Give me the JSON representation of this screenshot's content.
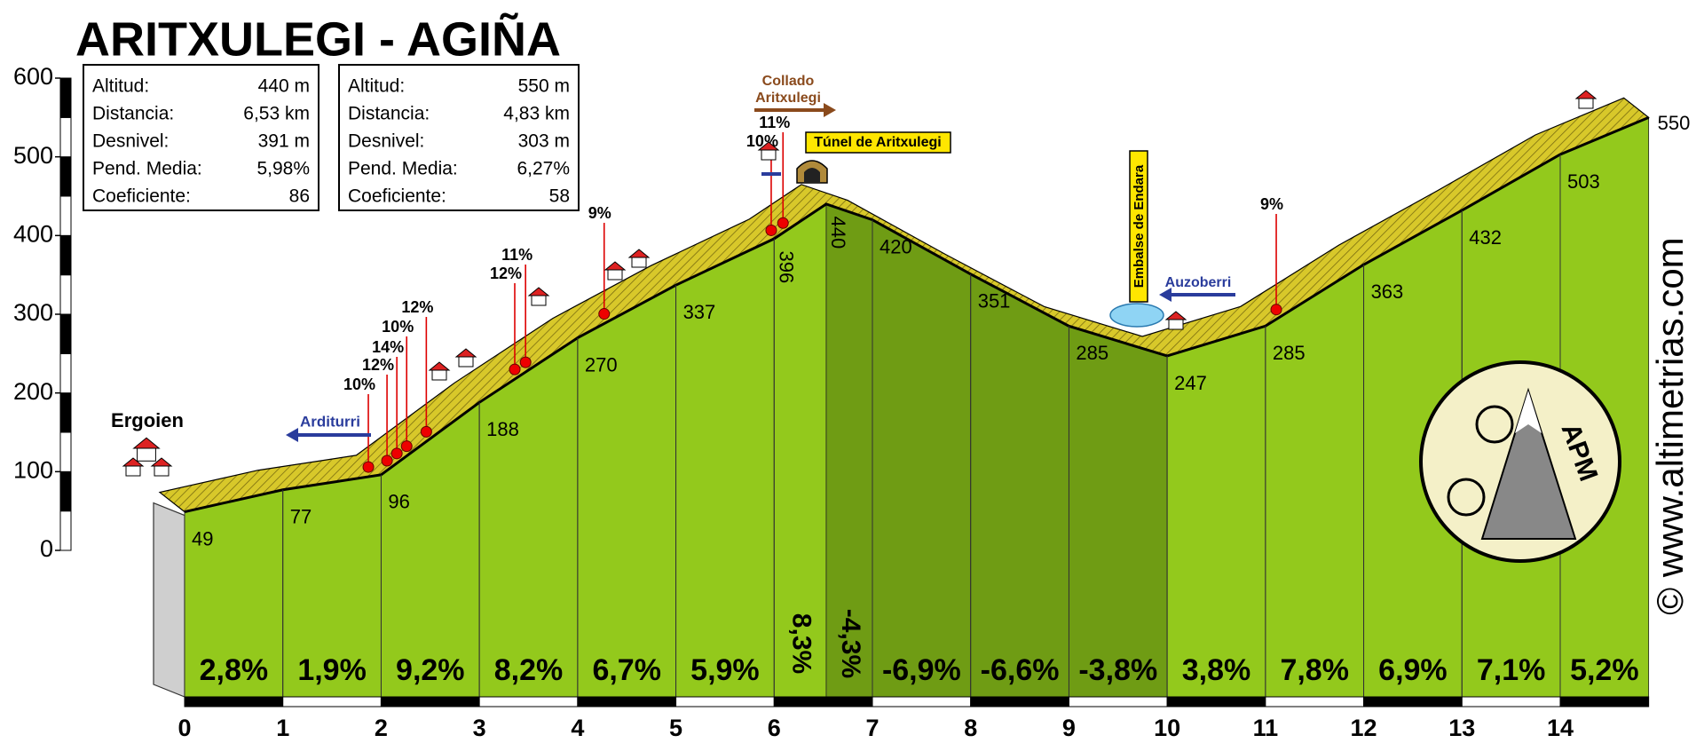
{
  "chart_data": {
    "type": "area",
    "title": "ARITXULEGI - AGIÑA",
    "x": [
      0,
      1,
      2,
      3,
      4,
      5,
      6,
      6.53,
      7,
      8,
      9,
      10,
      11,
      12,
      13,
      14,
      14.9
    ],
    "values": [
      49,
      77,
      96,
      188,
      270,
      337,
      396,
      440,
      420,
      351,
      285,
      247,
      285,
      363,
      432,
      503,
      550
    ],
    "segment_grades": [
      2.8,
      1.9,
      9.2,
      8.2,
      6.7,
      5.9,
      8.3,
      -4.3,
      -6.9,
      -6.6,
      -3.8,
      3.8,
      7.8,
      6.9,
      7.1,
      5.2
    ],
    "segment_grade_labels": [
      "2,8%",
      "1,9%",
      "9,2%",
      "8,2%",
      "6,7%",
      "5,9%",
      "8,3%",
      "-4,3%",
      "-6,9%",
      "-6,6%",
      "-3,8%",
      "3,8%",
      "7,8%",
      "6,9%",
      "7,1%",
      "5,2%"
    ],
    "xlim": [
      0,
      14.9
    ],
    "ylim": [
      0,
      600
    ],
    "xticks": [
      0,
      1,
      2,
      3,
      4,
      5,
      6,
      7,
      8,
      9,
      10,
      11,
      12,
      13,
      14
    ],
    "yticks": [
      0,
      100,
      200,
      300,
      400,
      500,
      600
    ],
    "ascent_color": "#93c91c",
    "descent_color": "#6f9c14",
    "road_color": "#d8c82a",
    "stats": [
      {
        "rows": [
          [
            "Altitud:",
            "440 m"
          ],
          [
            "Distancia:",
            "6,53 km"
          ],
          [
            "Desnivel:",
            "391 m"
          ],
          [
            "Pend. Media:",
            "5,98%"
          ],
          [
            "Coeficiente:",
            "86"
          ]
        ]
      },
      {
        "rows": [
          [
            "Altitud:",
            "550 m"
          ],
          [
            "Distancia:",
            "4,83 km"
          ],
          [
            "Desnivel:",
            "303 m"
          ],
          [
            "Pend. Media:",
            "6,27%"
          ],
          [
            "Coeficiente:",
            "58"
          ]
        ]
      }
    ],
    "places": {
      "start": "Ergoien",
      "arditurri": "Arditurri",
      "collado": [
        "Collado",
        "Aritxulegi"
      ],
      "tunnel": "Túnel de Aritxulegi",
      "reservoir": "Embalse de Endara",
      "auzoberri": "Auzoberri"
    },
    "spike_labels": [
      "10%",
      "12%",
      "14%",
      "10%",
      "12%",
      "12%",
      "11%",
      "9%",
      "10%",
      "11%",
      "9%"
    ],
    "logo": "APM",
    "credit": "© www.altimetrias.com"
  }
}
